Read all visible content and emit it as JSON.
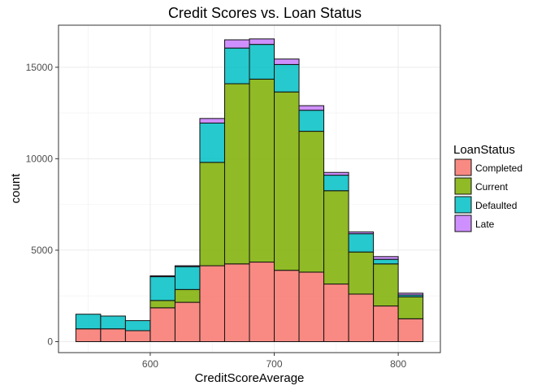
{
  "chart_data": {
    "type": "bar",
    "stacked": true,
    "title": "Credit Scores vs. Loan Status",
    "xlabel": "CreditScoreAverage",
    "ylabel": "count",
    "xlim": [
      526,
      834
    ],
    "ylim": [
      -600,
      17300
    ],
    "xticks": [
      600,
      700,
      800
    ],
    "yticks": [
      0,
      5000,
      10000,
      15000
    ],
    "grid": true,
    "legend": {
      "title": "LoanStatus",
      "placement": "right"
    },
    "bins": [
      {
        "x0": 540,
        "x1": 560
      },
      {
        "x0": 560,
        "x1": 580
      },
      {
        "x0": 580,
        "x1": 600
      },
      {
        "x0": 600,
        "x1": 620
      },
      {
        "x0": 620,
        "x1": 640
      },
      {
        "x0": 640,
        "x1": 660
      },
      {
        "x0": 660,
        "x1": 680
      },
      {
        "x0": 680,
        "x1": 700
      },
      {
        "x0": 700,
        "x1": 720
      },
      {
        "x0": 720,
        "x1": 740
      },
      {
        "x0": 740,
        "x1": 760
      },
      {
        "x0": 760,
        "x1": 780
      },
      {
        "x0": 780,
        "x1": 800
      },
      {
        "x0": 800,
        "x1": 820
      }
    ],
    "series": [
      {
        "name": "Completed",
        "color": "#F8766D",
        "values": [
          700,
          700,
          600,
          1850,
          2150,
          4150,
          4250,
          4350,
          3900,
          3800,
          3150,
          2600,
          1950,
          1250
        ]
      },
      {
        "name": "Current",
        "color": "#7CAE00",
        "values": [
          0,
          0,
          0,
          400,
          700,
          5650,
          9850,
          10000,
          9750,
          7700,
          5100,
          2300,
          2300,
          1200
        ]
      },
      {
        "name": "Defaulted",
        "color": "#00BFC4",
        "values": [
          800,
          700,
          550,
          1300,
          1250,
          2150,
          1950,
          1900,
          1500,
          1150,
          850,
          1000,
          250,
          100
        ]
      },
      {
        "name": "Late",
        "color": "#C77CFF",
        "values": [
          0,
          0,
          0,
          50,
          50,
          250,
          450,
          300,
          300,
          250,
          150,
          100,
          150,
          100
        ]
      }
    ]
  }
}
